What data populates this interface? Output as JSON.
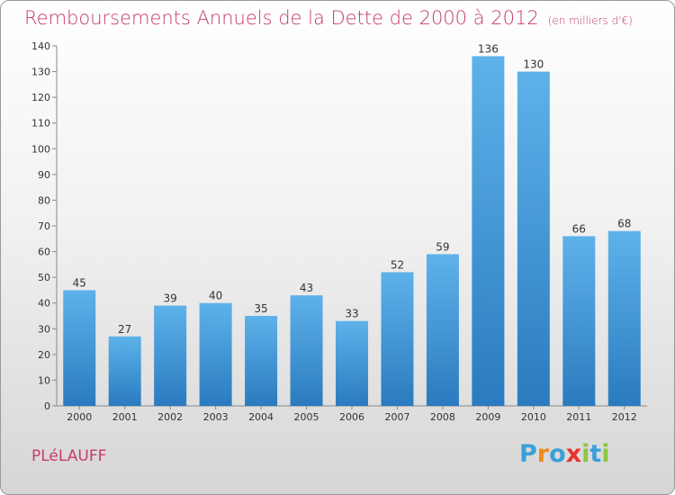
{
  "header": {
    "title": "Remboursements Annuels de la Dette de 2000 à 2012",
    "unit": "(en milliers d'€)"
  },
  "commune": "PLéLAUFF",
  "logo": {
    "letters": [
      "P",
      "r",
      "o",
      "x",
      "i",
      "t",
      "i"
    ],
    "colors": [
      "#3aa0d8",
      "#f08a1c",
      "#3aa0d8",
      "#e8312f",
      "#8cc63f",
      "#3aa0d8",
      "#8cc63f"
    ]
  },
  "chart_data": {
    "type": "bar",
    "categories": [
      "2000",
      "2001",
      "2002",
      "2003",
      "2004",
      "2005",
      "2006",
      "2007",
      "2008",
      "2009",
      "2010",
      "2011",
      "2012"
    ],
    "values": [
      45,
      27,
      39,
      40,
      35,
      43,
      33,
      52,
      59,
      136,
      130,
      66,
      68
    ],
    "ylim": [
      0,
      140
    ],
    "yticks": [
      0,
      10,
      20,
      30,
      40,
      50,
      60,
      70,
      80,
      90,
      100,
      110,
      120,
      130,
      140
    ],
    "grid": false,
    "colors": {
      "bar_top": "#5eb2ea",
      "bar_bottom": "#2a7bbf",
      "axis": "#888888"
    }
  }
}
